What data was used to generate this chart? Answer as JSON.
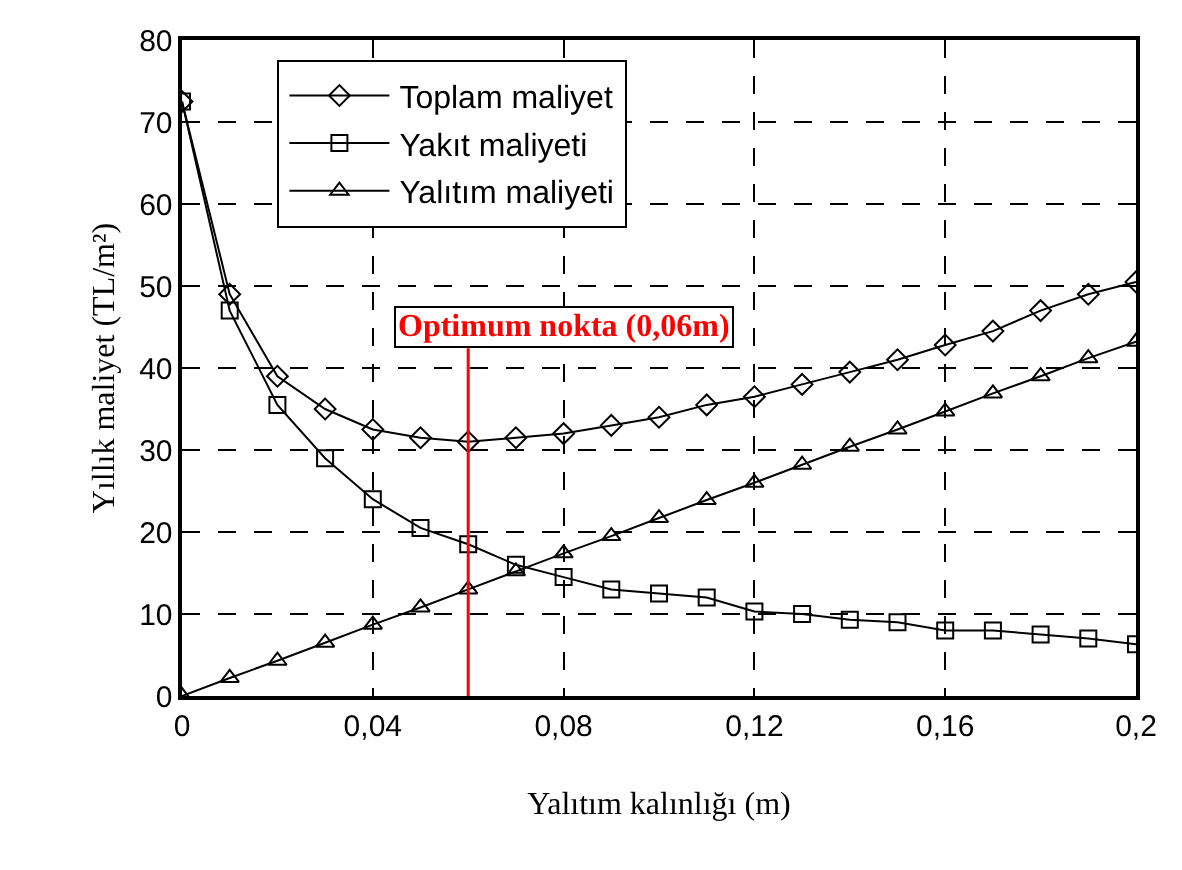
{
  "chart_data": {
    "type": "line",
    "xlabel": "Yalıtım kalınlığı (m)",
    "ylabel": "Yıllık maliyet (TL/m²)",
    "x": [
      0,
      0.01,
      0.02,
      0.03,
      0.04,
      0.05,
      0.06,
      0.07,
      0.08,
      0.09,
      0.1,
      0.11,
      0.12,
      0.13,
      0.14,
      0.15,
      0.16,
      0.17,
      0.18,
      0.19,
      0.2
    ],
    "series": [
      {
        "name": "Toplam maliyet",
        "color": "#000000",
        "marker": "diamond",
        "values": [
          72.5,
          49,
          39,
          35,
          32.5,
          31.5,
          31,
          31.5,
          32,
          33,
          34,
          35.5,
          36.5,
          38,
          39.5,
          41,
          42.8,
          44.5,
          47,
          49,
          50.5
        ]
      },
      {
        "name": "Yakıt maliyeti",
        "color": "#000000",
        "marker": "square",
        "values": [
          72.5,
          47,
          35.5,
          29,
          24,
          20.5,
          18.5,
          16,
          14.5,
          13,
          12.5,
          12,
          10.3,
          10,
          9.3,
          9,
          8,
          8,
          7.5,
          7,
          6.3
        ]
      },
      {
        "name": "Yalıtım maliyeti",
        "color": "#000000",
        "marker": "triangle",
        "values": [
          0,
          2.2,
          4.3,
          6.5,
          8.7,
          10.8,
          13,
          15.2,
          17.4,
          19.5,
          21.7,
          23.9,
          26,
          28.2,
          30.4,
          32.5,
          34.7,
          36.9,
          39,
          41.2,
          43.2
        ]
      }
    ],
    "ref_lines": [
      {
        "axis": "x",
        "value": 0.06,
        "label": "Optimum nokta (0,06m)",
        "color": "#ff0000"
      }
    ],
    "xlim": [
      0,
      0.2
    ],
    "xticks": [
      0,
      {
        "value": 0.04,
        "label": "0,04"
      },
      {
        "value": 0.08,
        "label": "0,08"
      },
      {
        "value": 0.12,
        "label": "0,12"
      },
      {
        "value": 0.16,
        "label": "0,16"
      },
      {
        "value": 0.2,
        "label": "0,2"
      }
    ],
    "ylim": [
      0,
      80
    ],
    "yticks": [
      0,
      10,
      20,
      30,
      40,
      50,
      60,
      70,
      80
    ],
    "grid": true,
    "legend": "top left",
    "line_style": "solid"
  }
}
